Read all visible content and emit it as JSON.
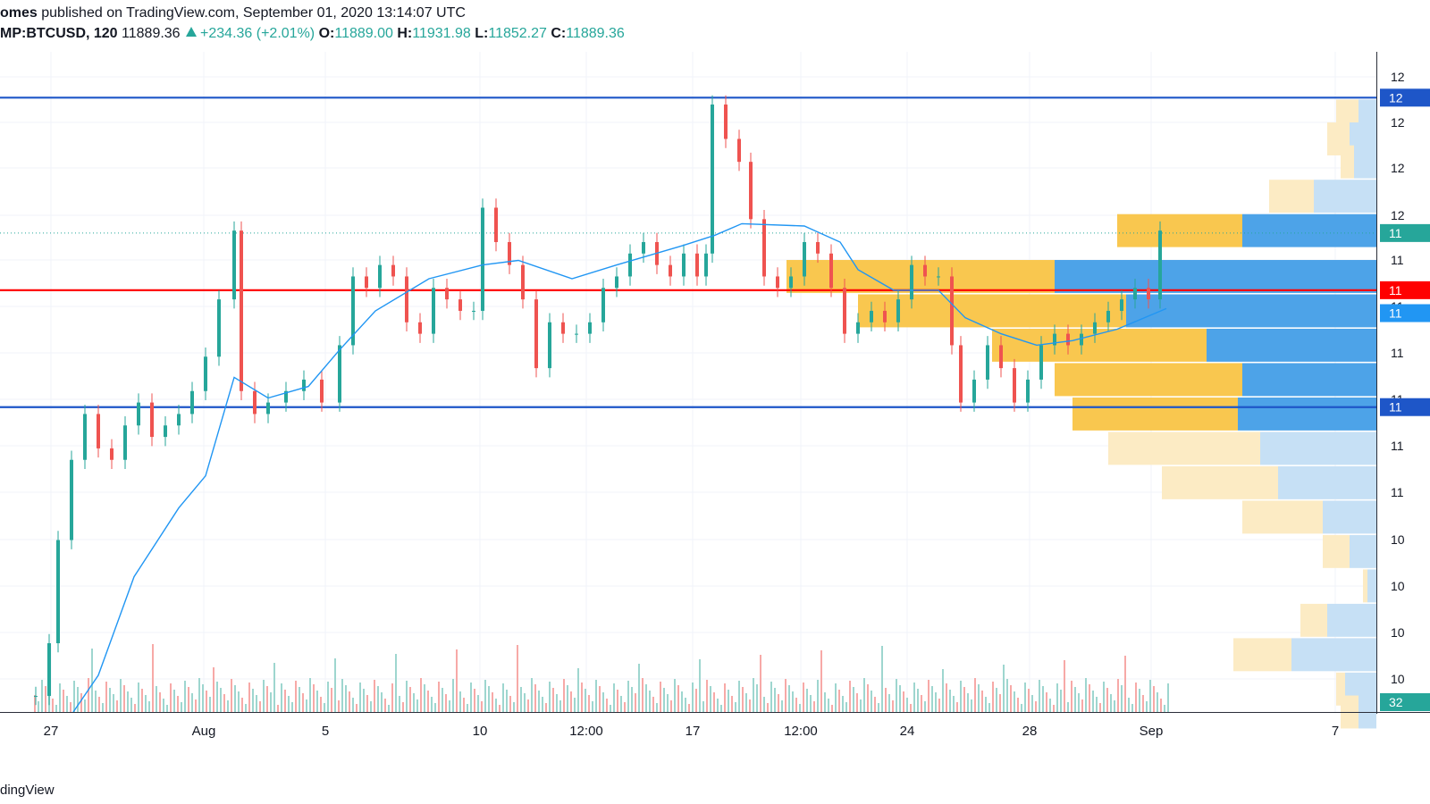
{
  "header": {
    "author": "omes",
    "published": "published on TradingView.com, September 01, 2020 13:14:07 UTC",
    "symbol": "MP:BTCUSD, 120",
    "last": "11889.36",
    "change": "+234.36 (+2.01%)",
    "o_label": "O:",
    "o_value": "11889.00",
    "h_label": "H:",
    "h_value": "11931.98",
    "l_label": "L:",
    "l_value": "11852.27",
    "c_label": "C:",
    "c_value": "11889.36"
  },
  "footer": {
    "brand": "dingView"
  },
  "colors": {
    "up": "#26a69a",
    "down": "#ef5350",
    "ma": "#2196f3",
    "support_resistance": "#1e56c8",
    "key_level": "#ff0000",
    "vp_up": "#f9c74f",
    "vp_down": "#4da3e8"
  },
  "chart_data": {
    "type": "candlestick",
    "x_ticks": [
      "27",
      "Aug",
      "5",
      "10",
      "12:00",
      "17",
      "12:00",
      "24",
      "28",
      "Sep",
      "7"
    ],
    "y_axis_labels_partial": [
      "12",
      "12",
      "12",
      "12",
      "11",
      "11",
      "11",
      "11",
      "11",
      "11",
      "10",
      "10",
      "10",
      "10",
      "10"
    ],
    "price_tags": [
      {
        "text": "12",
        "kind": "resistance"
      },
      {
        "text": "11",
        "kind": "last"
      },
      {
        "text": "11",
        "kind": "key_level"
      },
      {
        "text": "11",
        "kind": "ma"
      },
      {
        "text": "11",
        "kind": "support"
      },
      {
        "text": "32",
        "kind": "volume"
      }
    ],
    "levels": {
      "resistance": 12480,
      "key_level": 11640,
      "support": 11130,
      "last": 11889.36
    },
    "ylim": [
      9800,
      12680
    ],
    "volume_profile": [
      {
        "price": 12400,
        "up": 25,
        "down": 20
      },
      {
        "price": 12300,
        "up": 25,
        "down": 30
      },
      {
        "price": 12200,
        "up": 15,
        "down": 25
      },
      {
        "price": 12050,
        "up": 50,
        "down": 70
      },
      {
        "price": 11900,
        "up": 140,
        "down": 150
      },
      {
        "price": 11700,
        "up": 300,
        "down": 360
      },
      {
        "price": 11550,
        "up": 300,
        "down": 280
      },
      {
        "price": 11400,
        "up": 240,
        "down": 190
      },
      {
        "price": 11250,
        "up": 210,
        "down": 150
      },
      {
        "price": 11100,
        "up": 185,
        "down": 155
      },
      {
        "price": 10950,
        "up": 170,
        "down": 130
      },
      {
        "price": 10800,
        "up": 130,
        "down": 110
      },
      {
        "price": 10650,
        "up": 90,
        "down": 60
      },
      {
        "price": 10500,
        "up": 30,
        "down": 30
      },
      {
        "price": 10350,
        "up": 5,
        "down": 10
      },
      {
        "price": 10200,
        "up": 30,
        "down": 55
      },
      {
        "price": 10050,
        "up": 65,
        "down": 95
      },
      {
        "price": 9900,
        "up": 10,
        "down": 35
      },
      {
        "price": 9800,
        "up": 20,
        "down": 20
      }
    ],
    "ma_path": [
      [
        82,
        9800
      ],
      [
        110,
        9960
      ],
      [
        150,
        10390
      ],
      [
        200,
        10690
      ],
      [
        230,
        10830
      ],
      [
        262,
        11260
      ],
      [
        300,
        11170
      ],
      [
        345,
        11220
      ],
      [
        380,
        11380
      ],
      [
        420,
        11550
      ],
      [
        480,
        11690
      ],
      [
        540,
        11750
      ],
      [
        580,
        11770
      ],
      [
        640,
        11690
      ],
      [
        690,
        11750
      ],
      [
        760,
        11830
      ],
      [
        800,
        11880
      ],
      [
        830,
        11930
      ],
      [
        900,
        11920
      ],
      [
        940,
        11850
      ],
      [
        960,
        11730
      ],
      [
        1000,
        11640
      ],
      [
        1050,
        11640
      ],
      [
        1080,
        11520
      ],
      [
        1120,
        11450
      ],
      [
        1160,
        11400
      ],
      [
        1200,
        11420
      ],
      [
        1250,
        11470
      ],
      [
        1305,
        11560
      ]
    ],
    "series": [
      {
        "name": "ohlc",
        "candles": [
          [
            40,
            9870
          ],
          [
            55,
            10100
          ],
          [
            65,
            10550
          ],
          [
            80,
            10900
          ],
          [
            95,
            11100
          ],
          [
            110,
            10950
          ],
          [
            125,
            10900
          ],
          [
            140,
            11050
          ],
          [
            155,
            11150
          ],
          [
            170,
            11000
          ],
          [
            185,
            11050
          ],
          [
            200,
            11100
          ],
          [
            215,
            11200
          ],
          [
            230,
            11350
          ],
          [
            245,
            11600
          ],
          [
            262,
            11900
          ],
          [
            270,
            11200
          ],
          [
            285,
            11100
          ],
          [
            300,
            11150
          ],
          [
            320,
            11200
          ],
          [
            340,
            11250
          ],
          [
            360,
            11150
          ],
          [
            380,
            11400
          ],
          [
            395,
            11700
          ],
          [
            410,
            11650
          ],
          [
            425,
            11750
          ],
          [
            440,
            11700
          ],
          [
            455,
            11500
          ],
          [
            470,
            11450
          ],
          [
            485,
            11650
          ],
          [
            500,
            11600
          ],
          [
            515,
            11550
          ],
          [
            530,
            11550
          ],
          [
            540,
            12000
          ],
          [
            555,
            11850
          ],
          [
            570,
            11750
          ],
          [
            585,
            11600
          ],
          [
            600,
            11300
          ],
          [
            615,
            11500
          ],
          [
            630,
            11450
          ],
          [
            645,
            11450
          ],
          [
            660,
            11500
          ],
          [
            675,
            11650
          ],
          [
            690,
            11700
          ],
          [
            705,
            11800
          ],
          [
            720,
            11850
          ],
          [
            735,
            11750
          ],
          [
            750,
            11700
          ],
          [
            765,
            11800
          ],
          [
            780,
            11700
          ],
          [
            790,
            11800
          ],
          [
            797,
            12450
          ],
          [
            812,
            12300
          ],
          [
            827,
            12200
          ],
          [
            840,
            11950
          ],
          [
            855,
            11700
          ],
          [
            870,
            11650
          ],
          [
            885,
            11700
          ],
          [
            900,
            11850
          ],
          [
            915,
            11800
          ],
          [
            930,
            11650
          ],
          [
            945,
            11450
          ],
          [
            960,
            11500
          ],
          [
            975,
            11550
          ],
          [
            990,
            11500
          ],
          [
            1005,
            11600
          ],
          [
            1020,
            11750
          ],
          [
            1035,
            11700
          ],
          [
            1050,
            11700
          ],
          [
            1065,
            11400
          ],
          [
            1075,
            11150
          ],
          [
            1090,
            11250
          ],
          [
            1105,
            11400
          ],
          [
            1120,
            11300
          ],
          [
            1135,
            11150
          ],
          [
            1150,
            11250
          ],
          [
            1165,
            11400
          ],
          [
            1180,
            11450
          ],
          [
            1195,
            11400
          ],
          [
            1210,
            11450
          ],
          [
            1225,
            11500
          ],
          [
            1240,
            11550
          ],
          [
            1255,
            11600
          ],
          [
            1270,
            11650
          ],
          [
            1285,
            11600
          ],
          [
            1298,
            11900
          ]
        ]
      }
    ]
  }
}
